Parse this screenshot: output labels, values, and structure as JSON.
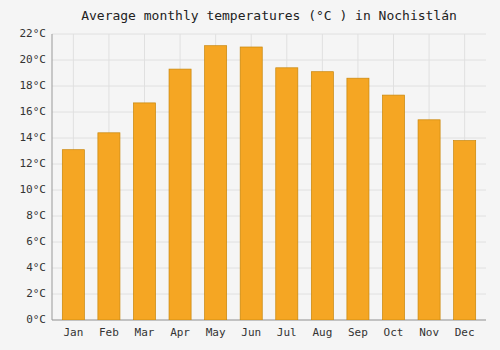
{
  "chart_data": {
    "type": "bar",
    "title": "Average monthly temperatures (°C ) in Nochistlán",
    "categories": [
      "Jan",
      "Feb",
      "Mar",
      "Apr",
      "May",
      "Jun",
      "Jul",
      "Aug",
      "Sep",
      "Oct",
      "Nov",
      "Dec"
    ],
    "values": [
      13.1,
      14.4,
      16.7,
      19.3,
      21.1,
      21.0,
      19.4,
      19.1,
      18.6,
      17.3,
      15.4,
      13.8
    ],
    "color": "#F5A623",
    "ylim": [
      0,
      22
    ],
    "yticks": [
      {
        "value": 0,
        "label": "0°C"
      },
      {
        "value": 2,
        "label": "2°C"
      },
      {
        "value": 4,
        "label": "4°C"
      },
      {
        "value": 6,
        "label": "6°C"
      },
      {
        "value": 8,
        "label": "8°C"
      },
      {
        "value": 10,
        "label": "10°C"
      },
      {
        "value": 12,
        "label": "12°C"
      },
      {
        "value": 14,
        "label": "14°C"
      },
      {
        "value": 16,
        "label": "16°C"
      },
      {
        "value": 18,
        "label": "18°C"
      },
      {
        "value": 20,
        "label": "20°C"
      },
      {
        "value": 22,
        "label": "22°C"
      }
    ],
    "grid": true
  }
}
